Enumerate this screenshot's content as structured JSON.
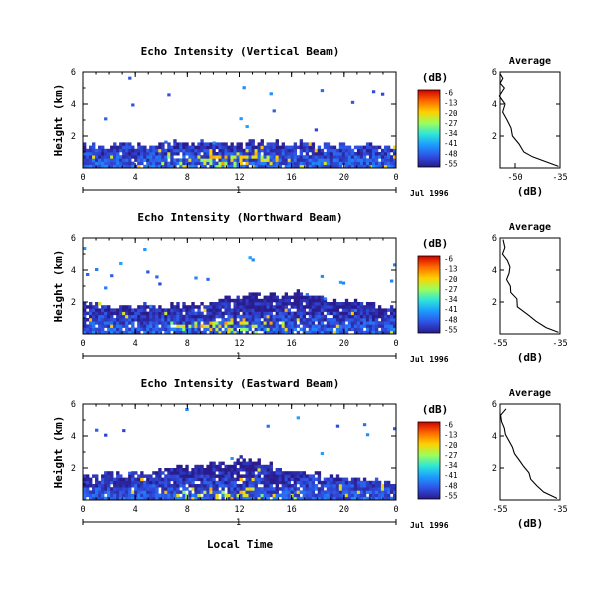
{
  "figure": {
    "xlabel": "Local Time",
    "date_label": "Jul 1996",
    "day_label": "1",
    "colorbar_unit": "(dB)",
    "colorbar_ticks": [
      "-6",
      "-13",
      "-20",
      "-27",
      "-34",
      "-41",
      "-48",
      "-55"
    ],
    "colorbar_colors": [
      "#d00000",
      "#ff6a00",
      "#ffd000",
      "#9dff5a",
      "#2ee6d8",
      "#1c9bff",
      "#2f52e6",
      "#2a1b8c"
    ],
    "avg_title": "Average",
    "avg_xlabel": "(dB)"
  },
  "chart_data": [
    {
      "type": "heatmap",
      "title": "Echo Intensity (Vertical Beam)",
      "ylabel": "Height (km)",
      "xlim": [
        0,
        24
      ],
      "ylim": [
        0,
        6
      ],
      "xticks": [
        "0",
        "4",
        "8",
        "12",
        "16",
        "20",
        "0"
      ],
      "yticks": [
        "2",
        "4",
        "6"
      ],
      "color_range_dB": [
        -55,
        -6
      ],
      "echo_top_km": [
        1.3,
        1.3,
        1.3,
        1.4,
        1.3,
        1.4,
        1.3,
        1.5,
        1.4,
        1.5,
        1.6,
        1.5,
        1.4,
        1.6,
        1.4,
        1.5,
        1.4,
        1.5,
        1.3,
        1.4,
        1.3,
        1.3,
        1.3,
        1.3,
        1.3
      ]
    },
    {
      "type": "line",
      "title": "Average",
      "xlabel": "(dB)",
      "xlim": [
        -55,
        -35
      ],
      "xticks": [
        "-50",
        "-35"
      ],
      "ylim": [
        0,
        6
      ],
      "yticks": [
        "2",
        "4",
        "6"
      ],
      "series": [
        {
          "x": [
            -35.5,
            -40,
            -44,
            -47,
            -49,
            -51,
            -52,
            -53,
            -54,
            -54,
            -55,
            -54,
            -55,
            -54,
            -55
          ],
          "y": [
            0.1,
            0.4,
            0.7,
            1.0,
            1.5,
            2.0,
            2.5,
            3.0,
            3.5,
            4.0,
            4.5,
            5.0,
            5.3,
            5.6,
            5.9
          ]
        }
      ]
    },
    {
      "type": "heatmap",
      "title": "Echo Intensity (Northward Beam)",
      "ylabel": "Height (km)",
      "xlim": [
        0,
        24
      ],
      "ylim": [
        0,
        6
      ],
      "xticks": [
        "0",
        "4",
        "8",
        "12",
        "16",
        "20",
        "0"
      ],
      "yticks": [
        "2",
        "4",
        "6"
      ],
      "color_range_dB": [
        -55,
        -6
      ],
      "echo_top_km": [
        1.8,
        1.9,
        1.7,
        1.8,
        1.6,
        1.9,
        1.5,
        1.8,
        1.7,
        1.8,
        2.0,
        2.1,
        2.2,
        2.3,
        2.4,
        2.3,
        2.5,
        2.4,
        2.2,
        2.1,
        2.0,
        1.9,
        1.8,
        1.6,
        1.5
      ]
    },
    {
      "type": "line",
      "title": "Average",
      "xlabel": "(dB)",
      "xlim": [
        -55,
        -35
      ],
      "xticks": [
        "-55",
        "-35"
      ],
      "ylim": [
        0,
        6
      ],
      "yticks": [
        "2",
        "4",
        "6"
      ],
      "series": [
        {
          "x": [
            -35.5,
            -39,
            -43,
            -46,
            -49,
            -50,
            -52,
            -51,
            -53,
            -52,
            -51,
            -53,
            -54,
            -53,
            -54
          ],
          "y": [
            0.1,
            0.4,
            0.8,
            1.2,
            1.7,
            2.2,
            2.6,
            3.0,
            3.4,
            3.8,
            4.2,
            4.6,
            5.0,
            5.4,
            5.9
          ]
        }
      ]
    },
    {
      "type": "heatmap",
      "title": "Echo Intensity (Eastward Beam)",
      "ylabel": "Height (km)",
      "xlim": [
        0,
        24
      ],
      "ylim": [
        0,
        6
      ],
      "xticks": [
        "0",
        "4",
        "8",
        "12",
        "16",
        "20",
        "0"
      ],
      "yticks": [
        "2",
        "4",
        "6"
      ],
      "color_range_dB": [
        -55,
        -6
      ],
      "echo_top_km": [
        1.5,
        1.4,
        1.6,
        1.3,
        1.7,
        1.5,
        1.8,
        2.0,
        1.9,
        2.0,
        2.3,
        2.1,
        2.5,
        2.4,
        2.2,
        2.0,
        1.8,
        1.6,
        1.5,
        1.4,
        1.3,
        1.2,
        1.2,
        1.1,
        1.0
      ]
    },
    {
      "type": "line",
      "title": "Average",
      "xlabel": "(dB)",
      "xlim": [
        -55,
        -35
      ],
      "xticks": [
        "-55",
        "-35"
      ],
      "ylim": [
        0,
        6
      ],
      "yticks": [
        "2",
        "4",
        "6"
      ],
      "series": [
        {
          "x": [
            -36,
            -40,
            -43,
            -45,
            -46,
            -47,
            -48,
            -50,
            -51,
            -52,
            -53,
            -53,
            -54,
            -55,
            -53
          ],
          "y": [
            0.1,
            0.5,
            0.9,
            1.3,
            1.7,
            2.1,
            2.5,
            2.9,
            3.3,
            3.7,
            4.1,
            4.5,
            4.9,
            5.3,
            5.7
          ]
        }
      ]
    }
  ]
}
